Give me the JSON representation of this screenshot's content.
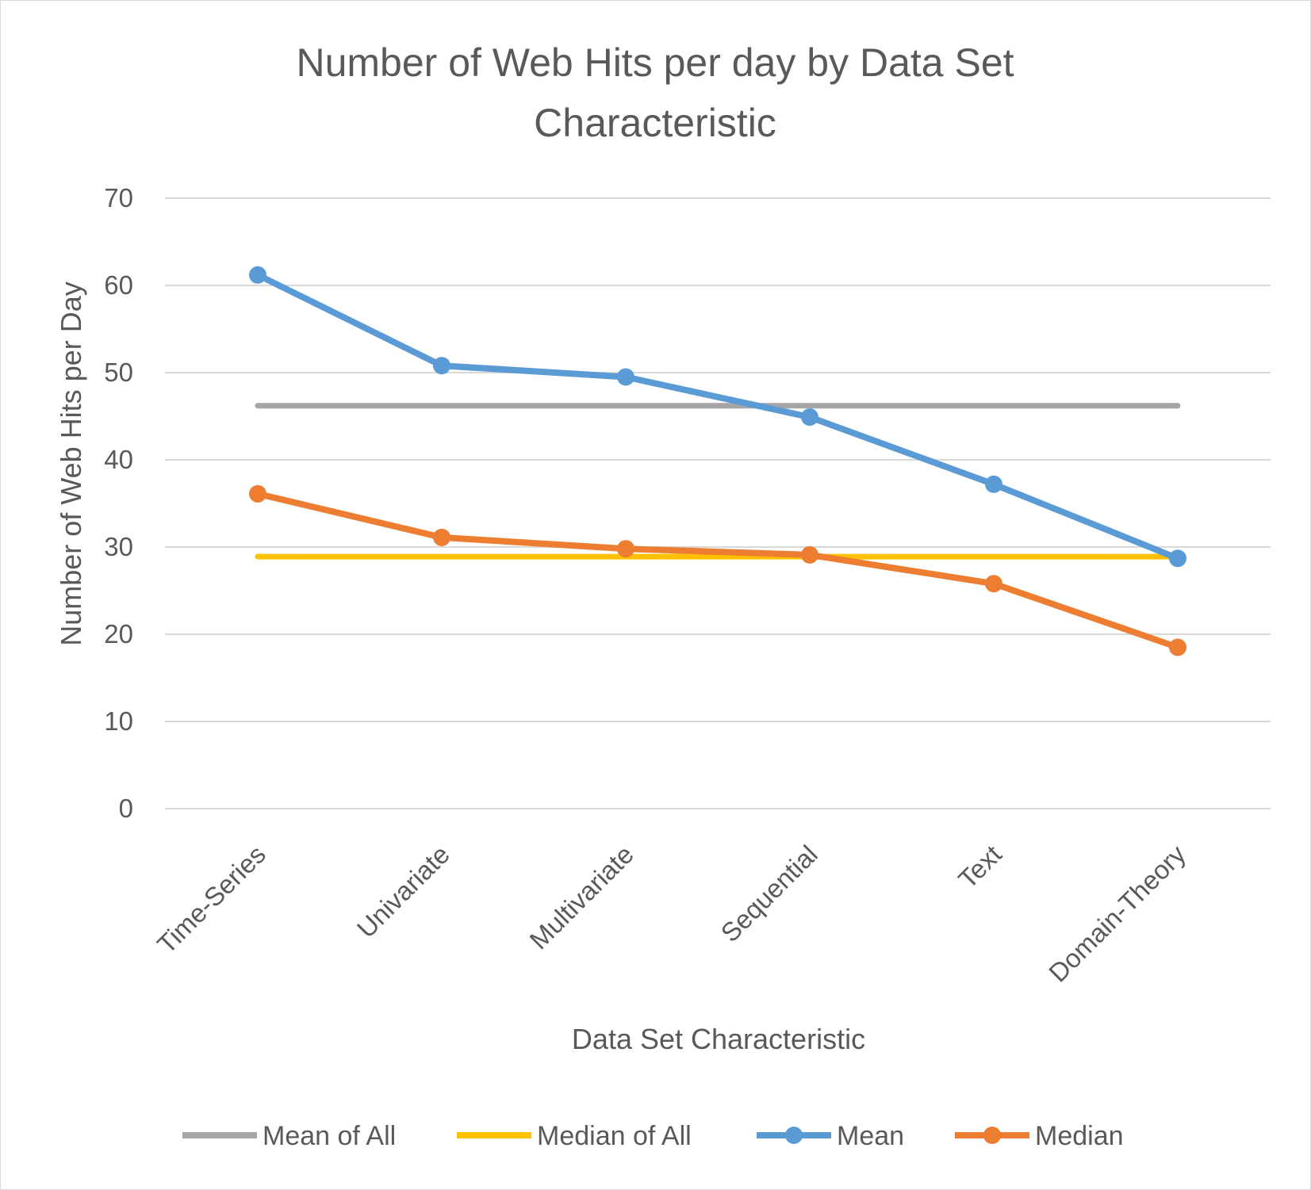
{
  "chart_data": {
    "type": "line",
    "title_lines": [
      "Number of Web Hits per day by Data Set",
      "Characteristic"
    ],
    "xlabel": "Data Set Characteristic",
    "ylabel": "Number of Web Hits per Day",
    "ylim": [
      0,
      70
    ],
    "yticks": [
      0,
      10,
      20,
      30,
      40,
      50,
      60,
      70
    ],
    "ytick_labels": [
      "0",
      "10",
      "20",
      "30",
      "40",
      "50",
      "60",
      "70"
    ],
    "categories": [
      "Time-Series",
      "Univariate",
      "Multivariate",
      "Sequential",
      "Text",
      "Domain-Theory"
    ],
    "grid": true,
    "legend_position": "bottom",
    "series": [
      {
        "name": "Mean of All",
        "color": "#a5a5a5",
        "markers": false,
        "values": [
          46.2,
          46.2,
          46.2,
          46.2,
          46.2,
          46.2
        ]
      },
      {
        "name": "Median of All",
        "color": "#ffc000",
        "markers": false,
        "values": [
          28.9,
          28.9,
          28.9,
          28.9,
          28.9,
          28.9
        ]
      },
      {
        "name": "Mean",
        "color": "#5b9bd5",
        "markers": true,
        "values": [
          61.2,
          50.8,
          49.5,
          44.9,
          37.2,
          28.7
        ]
      },
      {
        "name": "Median",
        "color": "#ed7d31",
        "markers": true,
        "values": [
          36.1,
          31.1,
          29.8,
          29.1,
          25.8,
          18.5
        ]
      }
    ]
  }
}
